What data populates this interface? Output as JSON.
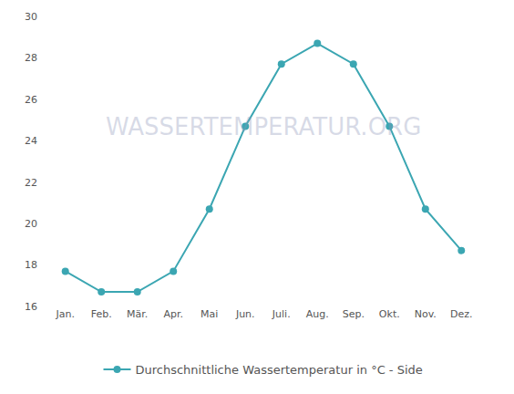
{
  "chart_data": {
    "type": "line",
    "categories": [
      "Jan.",
      "Feb.",
      "Mär.",
      "Apr.",
      "Mai",
      "Jun.",
      "Juli.",
      "Aug.",
      "Sep.",
      "Okt.",
      "Nov.",
      "Dez."
    ],
    "series": [
      {
        "name": "Durchschnittliche Wassertemperatur in °C - Side",
        "color": "#3ba6b2",
        "values": [
          17.7,
          16.7,
          16.7,
          17.7,
          20.7,
          24.7,
          27.7,
          28.7,
          27.7,
          24.7,
          20.7,
          18.7
        ]
      }
    ],
    "ylim": [
      16,
      30
    ],
    "yticks": [
      16,
      18,
      20,
      22,
      24,
      26,
      28,
      30
    ],
    "grid": false,
    "legend": "bottom",
    "marker": "circle",
    "annotations": [
      "WASSERTEMPERATUR.ORG"
    ]
  }
}
